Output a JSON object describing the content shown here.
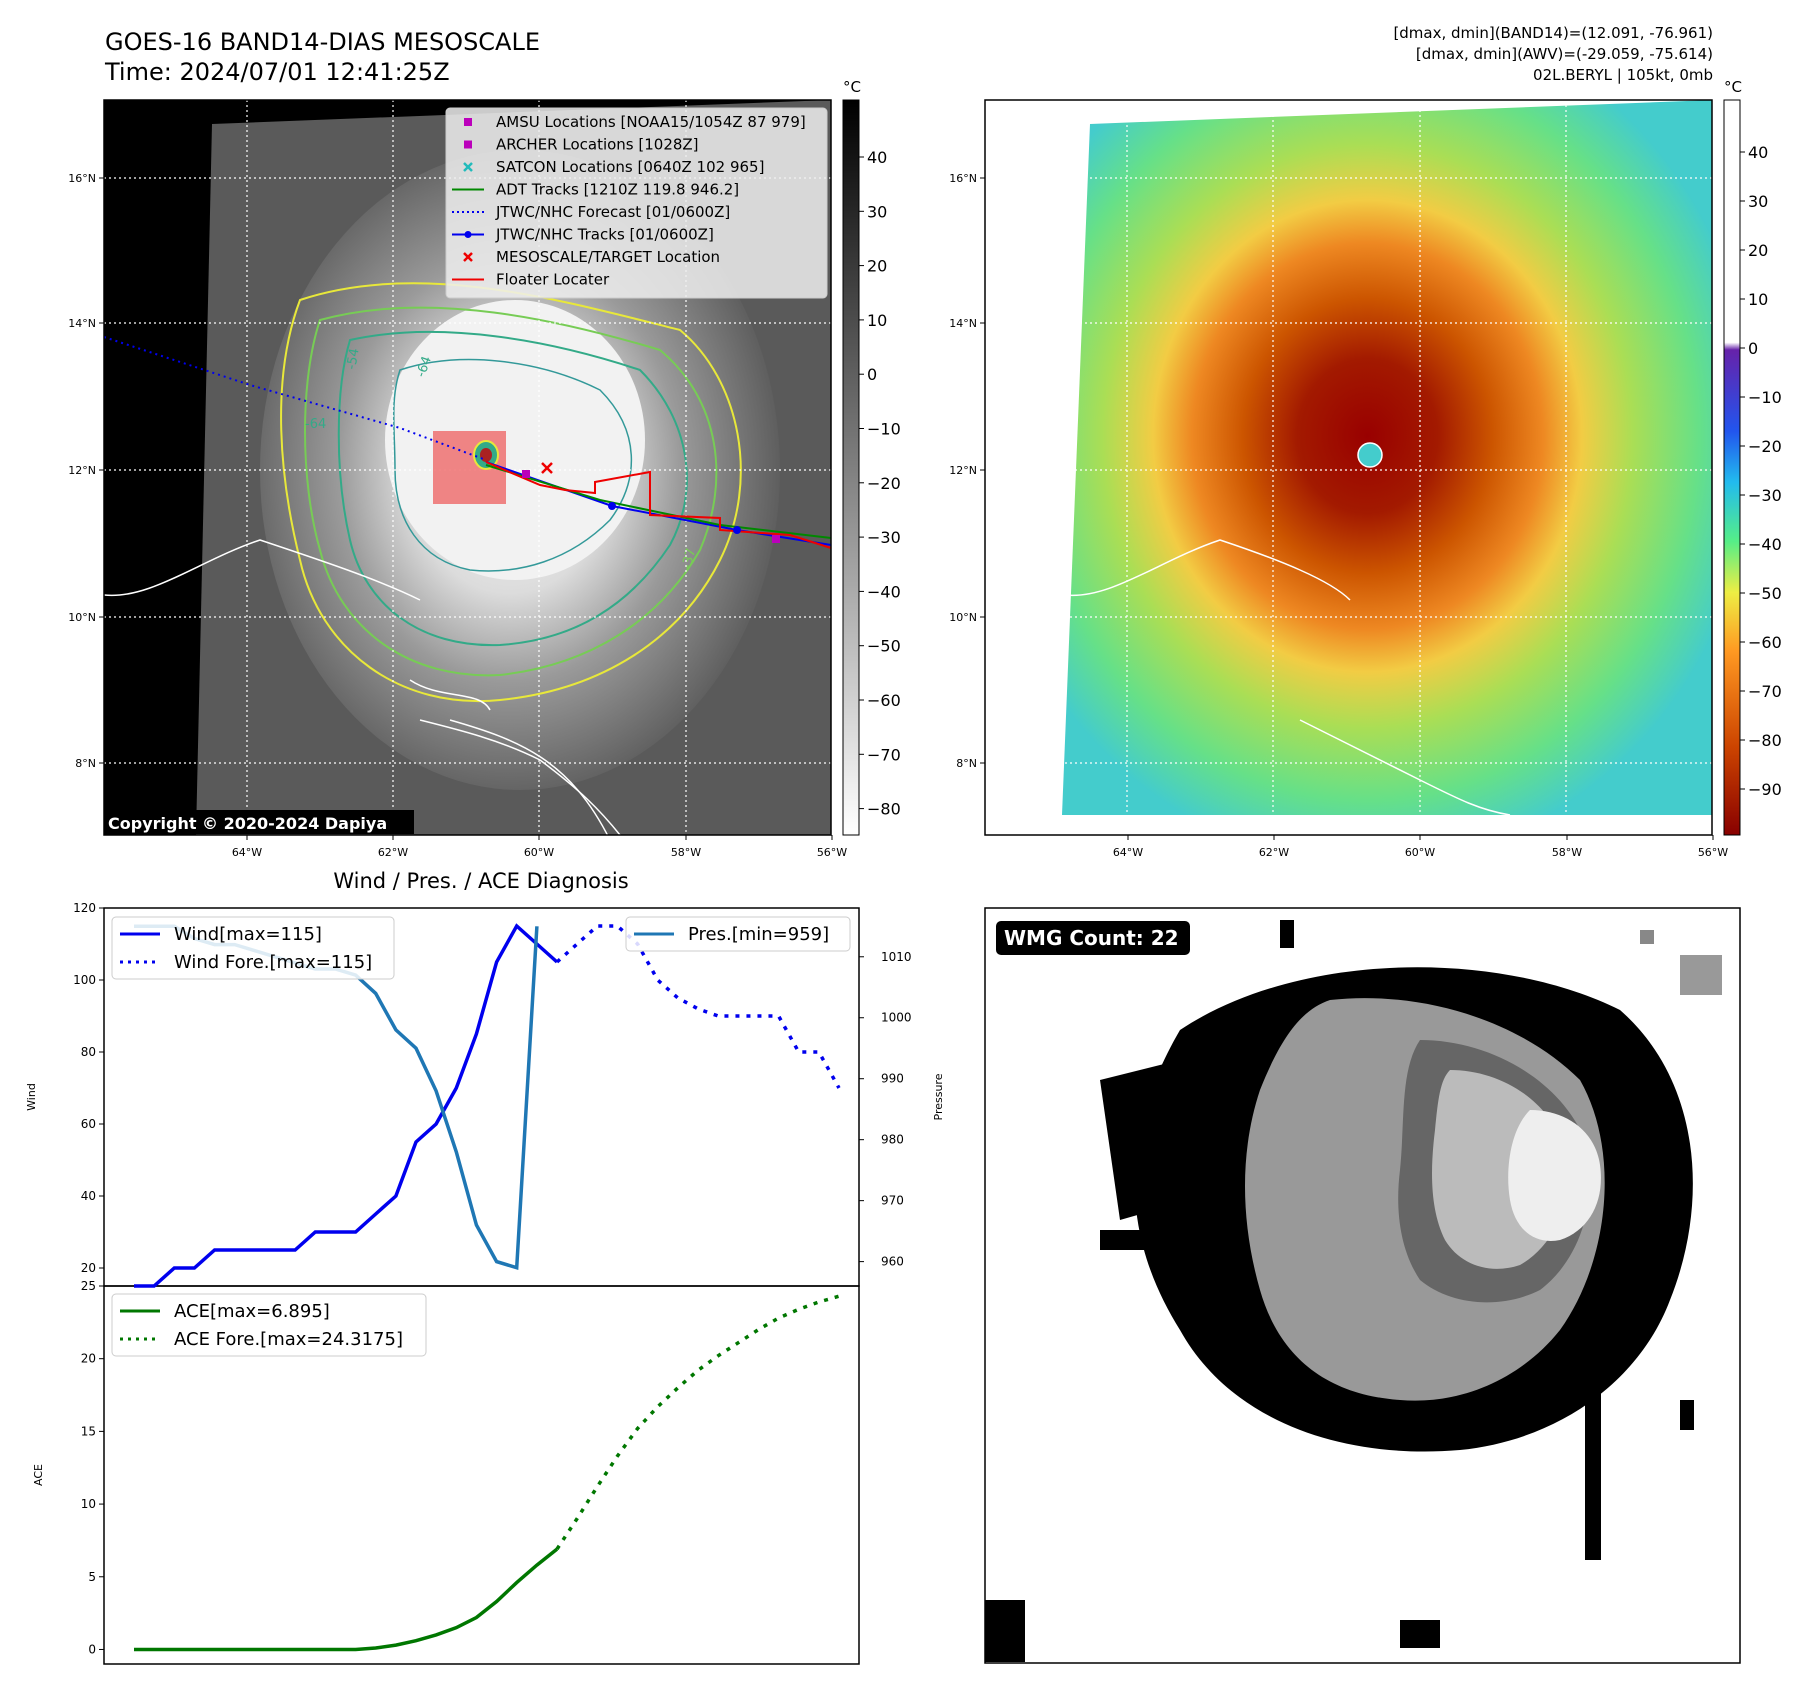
{
  "header": {
    "title": "GOES-16 BAND14-DIAS MESOSCALE",
    "time": "Time: 2024/07/01 12:41:25Z",
    "info_line1": "[dmax, dmin](BAND14)=(12.091, -76.961)",
    "info_line2": "[dmax, dmin](AWV)=(-29.059, -75.614)",
    "info_line3": "02L.BERYL | 105kt, 0mb"
  },
  "map_panel": {
    "copyright": "Copyright © 2020-2024 Dapiya",
    "colorbar_unit": "°C",
    "lat_labels": [
      "16°N",
      "14°N",
      "12°N",
      "10°N",
      "8°N"
    ],
    "lon_labels": [
      "64°W",
      "62°W",
      "60°W",
      "58°W",
      "56°W"
    ],
    "colorbar_ticks": [
      "40",
      "30",
      "20",
      "10",
      "0",
      "−10",
      "−20",
      "−30",
      "−40",
      "−50",
      "−60",
      "−70",
      "−80"
    ],
    "contour_labels": [
      "-64",
      "-64",
      "-54",
      "-37"
    ],
    "legend": [
      {
        "label": "AMSU Locations [NOAA15/1054Z 87 979]",
        "color": "#bb00bb",
        "marker": "square"
      },
      {
        "label": "ARCHER Locations [1028Z]",
        "color": "#bb00bb",
        "marker": "square"
      },
      {
        "label": "SATCON Locations [0640Z 102 965]",
        "color": "#22bbbb",
        "marker": "x"
      },
      {
        "label": "ADT Tracks [1210Z 119.8 946.2]",
        "color": "#008800",
        "marker": "line"
      },
      {
        "label": "JTWC/NHC Forecast [01/0600Z]",
        "color": "#0000ee",
        "marker": "dotted"
      },
      {
        "label": "JTWC/NHC Tracks [01/0600Z]",
        "color": "#0000ee",
        "marker": "line-dot"
      },
      {
        "label": "MESOSCALE/TARGET Location",
        "color": "#ee0000",
        "marker": "x"
      },
      {
        "label": "Floater Locater",
        "color": "#ee0000",
        "marker": "line"
      }
    ]
  },
  "awv_panel": {
    "colorbar_unit": "°C",
    "lat_labels": [
      "16°N",
      "14°N",
      "12°N",
      "10°N",
      "8°N"
    ],
    "lon_labels": [
      "64°W",
      "62°W",
      "60°W",
      "58°W",
      "56°W"
    ],
    "colorbar_ticks": [
      "40",
      "30",
      "20",
      "10",
      "0",
      "−10",
      "−20",
      "−30",
      "−40",
      "−50",
      "−60",
      "−70",
      "−80",
      "−90"
    ]
  },
  "wmg_panel": {
    "badge": "WMG Count: 22"
  },
  "chart_data": [
    {
      "type": "line",
      "title": "Wind / Pres. / ACE Diagnosis",
      "ylabel": "Wind",
      "ylabel_right": "Pressure",
      "ylim": [
        15,
        120
      ],
      "ylim_right": [
        956,
        1018
      ],
      "yticks": [
        20,
        40,
        60,
        80,
        100,
        120
      ],
      "yticks_right": [
        960,
        970,
        980,
        990,
        1000,
        1010
      ],
      "legend_left": [
        "Wind[max=115]",
        "Wind Fore.[max=115]"
      ],
      "legend_right": [
        "Pres.[min=959]"
      ],
      "series": [
        {
          "name": "Wind[max=115]",
          "axis": "left",
          "style": "solid",
          "color": "#0000ee",
          "values": [
            15,
            15,
            20,
            20,
            25,
            25,
            25,
            25,
            25,
            30,
            30,
            30,
            35,
            40,
            55,
            60,
            70,
            85,
            105,
            115,
            110,
            105
          ]
        },
        {
          "name": "Wind Fore.[max=115]",
          "axis": "left",
          "style": "dotted",
          "color": "#0000ee",
          "offset": 21,
          "values": [
            105,
            110,
            115,
            115,
            110,
            100,
            95,
            92,
            90,
            90,
            90,
            90,
            80,
            80,
            70
          ]
        },
        {
          "name": "Pres.[min=959]",
          "axis": "right",
          "style": "solid",
          "color": "#1f77b4",
          "values": [
            1015,
            1015,
            1015,
            1013,
            1012,
            1012,
            1011,
            1010,
            1009,
            1008,
            1008,
            1007,
            1004,
            998,
            995,
            988,
            978,
            966,
            960,
            959,
            1015
          ]
        }
      ]
    },
    {
      "type": "line",
      "ylabel": "ACE",
      "ylim": [
        -1,
        25
      ],
      "yticks": [
        0,
        5,
        10,
        15,
        20,
        25
      ],
      "legend": [
        "ACE[max=6.895]",
        "ACE Fore.[max=24.3175]"
      ],
      "series": [
        {
          "name": "ACE[max=6.895]",
          "style": "solid",
          "color": "#007700",
          "values": [
            0,
            0,
            0,
            0,
            0,
            0,
            0,
            0,
            0,
            0,
            0,
            0,
            0.1,
            0.3,
            0.6,
            1.0,
            1.5,
            2.2,
            3.3,
            4.6,
            5.8,
            6.9
          ]
        },
        {
          "name": "ACE Fore.[max=24.3175]",
          "style": "dotted",
          "color": "#007700",
          "offset": 21,
          "values": [
            6.9,
            9.0,
            11.2,
            13.3,
            15.2,
            16.7,
            18.0,
            19.2,
            20.2,
            21.1,
            22.0,
            22.8,
            23.4,
            23.9,
            24.3
          ]
        }
      ]
    }
  ]
}
